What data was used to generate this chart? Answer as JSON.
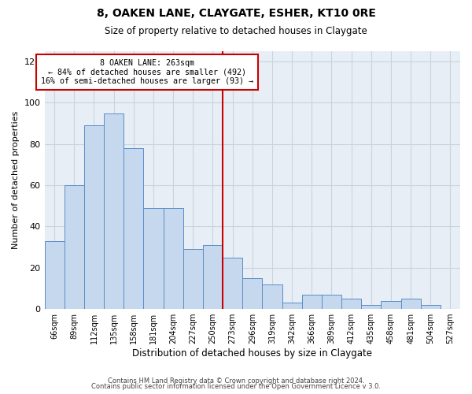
{
  "title": "8, OAKEN LANE, CLAYGATE, ESHER, KT10 0RE",
  "subtitle": "Size of property relative to detached houses in Claygate",
  "xlabel": "Distribution of detached houses by size in Claygate",
  "ylabel": "Number of detached properties",
  "footer_line1": "Contains HM Land Registry data © Crown copyright and database right 2024.",
  "footer_line2": "Contains public sector information licensed under the Open Government Licence v 3.0.",
  "bin_labels": [
    "66sqm",
    "89sqm",
    "112sqm",
    "135sqm",
    "158sqm",
    "181sqm",
    "204sqm",
    "227sqm",
    "250sqm",
    "273sqm",
    "296sqm",
    "319sqm",
    "342sqm",
    "366sqm",
    "389sqm",
    "412sqm",
    "435sqm",
    "458sqm",
    "481sqm",
    "504sqm",
    "527sqm"
  ],
  "bar_values": [
    33,
    60,
    89,
    95,
    78,
    49,
    49,
    29,
    31,
    25,
    15,
    12,
    3,
    7,
    7,
    5,
    2,
    4,
    5,
    2,
    0
  ],
  "bar_color": "#c5d8ed",
  "bar_edge_color": "#5b8dc8",
  "highlight_bin_index": 8,
  "vline_color": "#cc0000",
  "annotation_title": "8 OAKEN LANE: 263sqm",
  "annotation_line1": "← 84% of detached houses are smaller (492)",
  "annotation_line2": "16% of semi-detached houses are larger (93) →",
  "annotation_box_color": "#ffffff",
  "annotation_box_edge_color": "#cc0000",
  "ylim": [
    0,
    125
  ],
  "yticks": [
    0,
    20,
    40,
    60,
    80,
    100,
    120
  ],
  "plot_bg_color": "#e8eef5",
  "background_color": "#ffffff",
  "grid_color": "#c8d4e0"
}
